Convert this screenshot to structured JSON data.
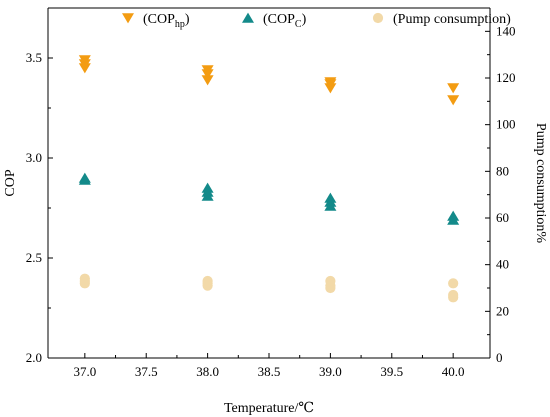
{
  "chart_data": {
    "type": "scatter",
    "xlabel": "Temperature/℃",
    "ylabel_left": "COP",
    "ylabel_right": "Pump consumption%",
    "xlim": [
      36.7,
      40.3
    ],
    "ylim_left": [
      2.0,
      3.75
    ],
    "ylim_right": [
      0,
      150
    ],
    "x_ticks": [
      "37.0",
      "37.5",
      "38.0",
      "38.5",
      "39.0",
      "39.5",
      "40.0"
    ],
    "y_left_ticks": [
      "2.0",
      "2.5",
      "3.0",
      "3.5"
    ],
    "y_right_ticks": [
      "0",
      "20",
      "40",
      "60",
      "80",
      "100",
      "120",
      "140"
    ],
    "grid": false,
    "legend_position": "top",
    "series": [
      {
        "name": "COP_hp",
        "legend_main": "(COP",
        "legend_sub": "hp",
        "legend_close": ")",
        "axis": "left",
        "marker": "triangle-down",
        "color": "#F39C12",
        "points": [
          [
            37.0,
            3.49
          ],
          [
            37.0,
            3.47
          ],
          [
            37.0,
            3.45
          ],
          [
            38.0,
            3.44
          ],
          [
            38.0,
            3.42
          ],
          [
            38.0,
            3.39
          ],
          [
            39.0,
            3.38
          ],
          [
            39.0,
            3.37
          ],
          [
            39.0,
            3.35
          ],
          [
            40.0,
            3.35
          ],
          [
            40.0,
            3.29
          ]
        ]
      },
      {
        "name": "COP_C",
        "legend_main": "(COP",
        "legend_sub": "C",
        "legend_close": ")",
        "axis": "left",
        "marker": "triangle-up",
        "color": "#138A8A",
        "points": [
          [
            37.0,
            2.9
          ],
          [
            37.0,
            2.89
          ],
          [
            38.0,
            2.85
          ],
          [
            38.0,
            2.83
          ],
          [
            38.0,
            2.81
          ],
          [
            39.0,
            2.8
          ],
          [
            39.0,
            2.78
          ],
          [
            39.0,
            2.76
          ],
          [
            40.0,
            2.71
          ],
          [
            40.0,
            2.69
          ]
        ]
      },
      {
        "name": "Pump consumption",
        "legend_main": "(Pump consumption)",
        "legend_sub": "",
        "legend_close": "",
        "axis": "right",
        "marker": "circle",
        "color": "#F2D9A8",
        "points": [
          [
            37.0,
            34
          ],
          [
            37.0,
            33
          ],
          [
            37.0,
            32
          ],
          [
            38.0,
            33
          ],
          [
            38.0,
            32
          ],
          [
            38.0,
            31
          ],
          [
            39.0,
            33
          ],
          [
            39.0,
            31
          ],
          [
            39.0,
            30
          ],
          [
            40.0,
            32
          ],
          [
            40.0,
            27
          ],
          [
            40.0,
            26
          ]
        ]
      }
    ]
  }
}
